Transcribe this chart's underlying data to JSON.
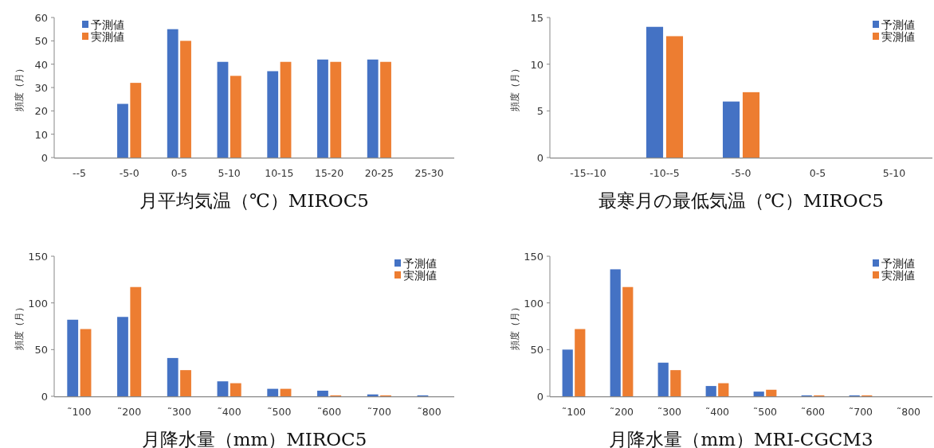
{
  "chart_data": [
    {
      "type": "bar",
      "xlabel": "月平均気温（℃）MIROC5",
      "ylabel": "頻度（月）",
      "categories": [
        "--5",
        "-5-0",
        "0-5",
        "5-10",
        "10-15",
        "15-20",
        "20-25",
        "25-30"
      ],
      "ylim": [
        0,
        60
      ],
      "yticks": [
        0,
        10,
        20,
        30,
        40,
        50,
        60
      ],
      "legend": "top left",
      "series": [
        {
          "name": "予測値",
          "color": "#4472c4",
          "values": [
            0,
            23,
            55,
            41,
            37,
            42,
            42,
            0
          ]
        },
        {
          "name": "実測値",
          "color": "#ed7d31",
          "values": [
            0,
            32,
            50,
            35,
            41,
            41,
            41,
            0
          ]
        }
      ]
    },
    {
      "type": "bar",
      "xlabel": "最寒月の最低気温（℃）MIROC5",
      "ylabel": "頻度（月）",
      "categories": [
        "-15--10",
        "-10--5",
        "-5-0",
        "0-5",
        "5-10"
      ],
      "ylim": [
        0,
        15
      ],
      "yticks": [
        0,
        5,
        10,
        15
      ],
      "legend": "top right",
      "series": [
        {
          "name": "予測値",
          "color": "#4472c4",
          "values": [
            0,
            14,
            6,
            0,
            0
          ]
        },
        {
          "name": "実測値",
          "color": "#ed7d31",
          "values": [
            0,
            13,
            7,
            0,
            0
          ]
        }
      ]
    },
    {
      "type": "bar",
      "xlabel": "月降水量（mm）MIROC5",
      "ylabel": "頻度（月）",
      "categories": [
        "˜100",
        "˜200",
        "˜300",
        "˜400",
        "˜500",
        "˜600",
        "˜700",
        "˜800"
      ],
      "ylim": [
        0,
        150
      ],
      "yticks": [
        0,
        50,
        100,
        150
      ],
      "legend": "top right",
      "series": [
        {
          "name": "予測値",
          "color": "#4472c4",
          "values": [
            82,
            85,
            41,
            16,
            8,
            6,
            2,
            1
          ]
        },
        {
          "name": "実測値",
          "color": "#ed7d31",
          "values": [
            72,
            117,
            28,
            14,
            8,
            1,
            1,
            0
          ]
        }
      ]
    },
    {
      "type": "bar",
      "xlabel": "月降水量（mm）MRI-CGCM3",
      "ylabel": "頻度（月）",
      "categories": [
        "˜100",
        "˜200",
        "˜300",
        "˜400",
        "˜500",
        "˜600",
        "˜700",
        "˜800"
      ],
      "ylim": [
        0,
        150
      ],
      "yticks": [
        0,
        50,
        100,
        150
      ],
      "legend": "top right",
      "series": [
        {
          "name": "予測値",
          "color": "#4472c4",
          "values": [
            50,
            136,
            36,
            11,
            5,
            1,
            1,
            0
          ]
        },
        {
          "name": "実測値",
          "color": "#ed7d31",
          "values": [
            72,
            117,
            28,
            14,
            7,
            1,
            1,
            0
          ]
        }
      ]
    }
  ]
}
